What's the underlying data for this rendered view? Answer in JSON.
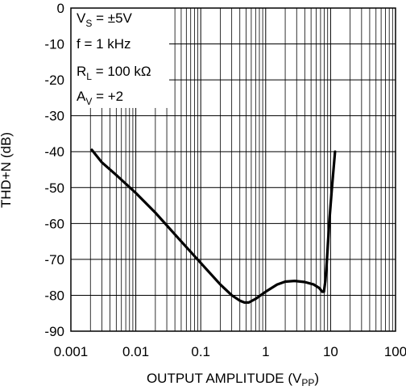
{
  "chart_data": {
    "type": "line",
    "x_scale": "log",
    "xlim": [
      0.001,
      100
    ],
    "ylim": [
      -90,
      0
    ],
    "grid": true,
    "xlabel": {
      "main": "OUTPUT AMPLITUDE (V",
      "sub": "PP",
      "tail": ")"
    },
    "ylabel": "THD+N (dB)",
    "x_ticks": [
      {
        "value": 0.001,
        "label": "0.001"
      },
      {
        "value": 0.01,
        "label": "0.01"
      },
      {
        "value": 0.1,
        "label": "0.1"
      },
      {
        "value": 1,
        "label": "1"
      },
      {
        "value": 10,
        "label": "10"
      },
      {
        "value": 100,
        "label": "100"
      }
    ],
    "y_ticks": [
      {
        "value": 0,
        "label": "0"
      },
      {
        "value": -10,
        "label": "-10"
      },
      {
        "value": -20,
        "label": "-20"
      },
      {
        "value": -30,
        "label": "-30"
      },
      {
        "value": -40,
        "label": "-40"
      },
      {
        "value": -50,
        "label": "-50"
      },
      {
        "value": -60,
        "label": "-60"
      },
      {
        "value": -70,
        "label": "-70"
      },
      {
        "value": -80,
        "label": "-80"
      },
      {
        "value": -90,
        "label": "-90"
      }
    ],
    "conditions": [
      {
        "main": "V",
        "sub": "S",
        "rest": " = ±5V"
      },
      {
        "main": "f = 1 kHz",
        "sub": "",
        "rest": ""
      },
      {
        "main": "R",
        "sub": "L",
        "rest": " = 100 kΩ"
      },
      {
        "main": "A",
        "sub": "V",
        "rest": " = +2"
      }
    ],
    "series": [
      {
        "x": [
          0.0021,
          0.003,
          0.005,
          0.01,
          0.02,
          0.05,
          0.1,
          0.2,
          0.3,
          0.4,
          0.47,
          0.55,
          0.7,
          1.0,
          1.5,
          2.0,
          2.8,
          4.0,
          5.5,
          6.7,
          7.4,
          7.9,
          8.3,
          8.8,
          9.5,
          10.5,
          11.7
        ],
        "y": [
          -39.5,
          -43,
          -46.5,
          -51.5,
          -57,
          -65,
          -71,
          -77,
          -80,
          -81.5,
          -82,
          -82,
          -81,
          -79,
          -77,
          -76.2,
          -76,
          -76.3,
          -77,
          -78,
          -79,
          -79,
          -76,
          -70,
          -60,
          -50,
          -40
        ]
      }
    ]
  }
}
